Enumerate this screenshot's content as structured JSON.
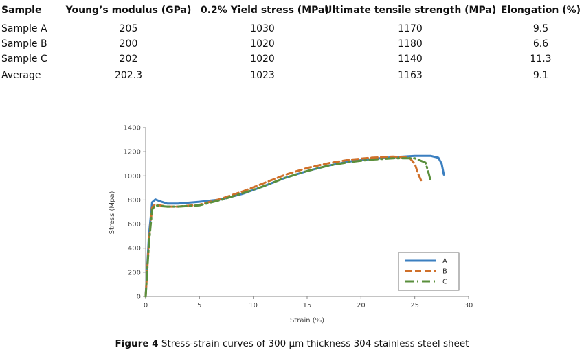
{
  "table": {
    "headers": [
      "Sample",
      "Young’s modulus (GPa)",
      "0.2% Yield stress (MPa)",
      "Ultimate tensile strength (MPa)",
      "Elongation (%)"
    ],
    "rows": [
      [
        "Sample A",
        "205",
        "1030",
        "1170",
        "9.5"
      ],
      [
        "Sample B",
        "200",
        "1020",
        "1180",
        "6.6"
      ],
      [
        "Sample C",
        "202",
        "1020",
        "1140",
        "11.3"
      ],
      [
        "Average",
        "202.3",
        "1023",
        "1163",
        "9.1"
      ]
    ]
  },
  "caption": {
    "label": "Figure 4",
    "text": "Stress-strain curves of 300 μm thickness 304 stainless steel sheet"
  },
  "chart_data": {
    "type": "line",
    "title": "",
    "xlabel": "Strain (%)",
    "ylabel": "Stress (Mpa)",
    "xlim": [
      0,
      30
    ],
    "ylim": [
      0,
      1400
    ],
    "xticks": [
      0,
      5,
      10,
      15,
      20,
      25,
      30
    ],
    "yticks": [
      0,
      200,
      400,
      600,
      800,
      1000,
      1200,
      1400
    ],
    "legend_position": "bottom-right",
    "series": [
      {
        "name": "A",
        "color": "#3b7fc0",
        "style": "solid",
        "x": [
          0,
          0.3,
          0.6,
          0.9,
          1.3,
          2,
          3,
          5,
          7,
          9,
          11,
          13,
          15,
          17,
          19,
          21,
          23,
          25,
          26.5,
          27.2,
          27.5,
          27.7
        ],
        "y": [
          0,
          500,
          780,
          805,
          790,
          770,
          770,
          785,
          805,
          850,
          915,
          985,
          1040,
          1085,
          1120,
          1140,
          1155,
          1165,
          1165,
          1150,
          1100,
          1010
        ]
      },
      {
        "name": "B",
        "color": "#d0702a",
        "style": "dashed",
        "x": [
          0,
          0.3,
          0.6,
          0.9,
          1.3,
          2,
          3,
          5,
          7,
          9,
          11,
          13,
          15,
          17,
          19,
          21,
          23,
          24.5,
          25,
          25.3,
          25.6
        ],
        "y": [
          0,
          450,
          740,
          765,
          755,
          745,
          745,
          760,
          810,
          870,
          940,
          1010,
          1065,
          1105,
          1135,
          1150,
          1160,
          1150,
          1100,
          1020,
          960
        ]
      },
      {
        "name": "C",
        "color": "#5a8f3c",
        "style": "dashdot",
        "x": [
          0,
          0.3,
          0.6,
          0.9,
          1.3,
          2,
          3,
          5,
          7,
          9,
          11,
          13,
          15,
          17,
          19,
          21,
          23,
          25,
          26,
          26.3,
          26.5
        ],
        "y": [
          0,
          430,
          720,
          755,
          750,
          745,
          745,
          755,
          800,
          855,
          915,
          985,
          1040,
          1085,
          1115,
          1135,
          1145,
          1145,
          1110,
          1020,
          950
        ]
      }
    ]
  }
}
